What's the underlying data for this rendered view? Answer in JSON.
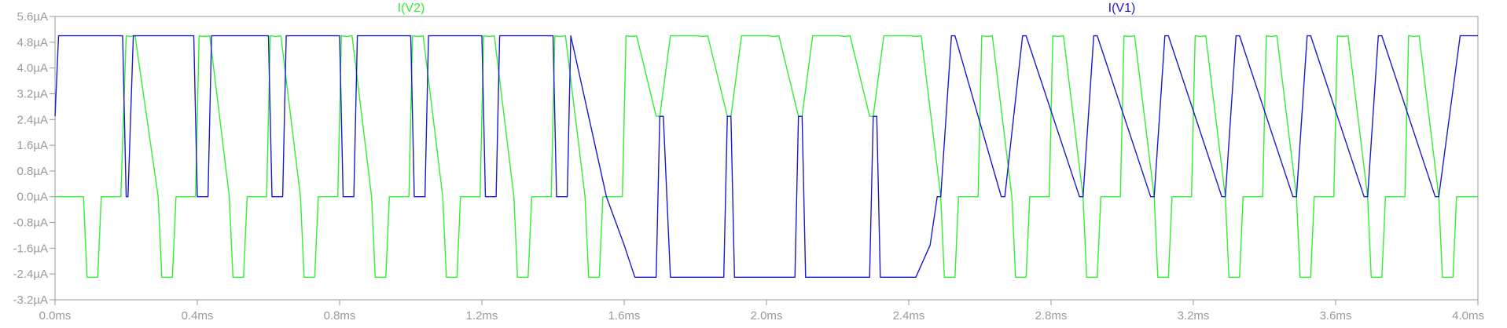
{
  "chart_data": {
    "type": "line",
    "x_unit": "ms",
    "y_unit": "µA",
    "xlim": [
      0.0,
      4.0
    ],
    "ylim": [
      -3.2,
      5.6
    ],
    "x_ticks": [
      "0.0ms",
      "0.4ms",
      "0.8ms",
      "1.2ms",
      "1.6ms",
      "2.0ms",
      "2.4ms",
      "2.8ms",
      "3.2ms",
      "3.6ms",
      "4.0ms"
    ],
    "y_ticks": [
      "5.6µA",
      "4.8µA",
      "4.0µA",
      "3.2µA",
      "2.4µA",
      "1.6µA",
      "0.8µA",
      "0.0µA",
      "-0.8µA",
      "-1.6µA",
      "-2.4µA",
      "-3.2µA"
    ],
    "grid": false,
    "legend_position": "top",
    "series": [
      {
        "name": "I(V2)",
        "color": "#33ee33",
        "x": [
          0.0,
          0.08,
          0.09,
          0.12,
          0.13,
          0.185,
          0.2,
          0.21,
          0.225,
          0.29,
          0.3,
          0.33,
          0.34,
          0.395,
          0.405,
          0.42,
          0.435,
          0.49,
          0.5,
          0.53,
          0.54,
          0.595,
          0.605,
          0.62,
          0.635,
          0.69,
          0.7,
          0.73,
          0.74,
          0.795,
          0.805,
          0.82,
          0.835,
          0.89,
          0.9,
          0.93,
          0.94,
          0.995,
          1.005,
          1.02,
          1.035,
          1.09,
          1.1,
          1.13,
          1.14,
          1.195,
          1.205,
          1.22,
          1.235,
          1.29,
          1.3,
          1.33,
          1.34,
          1.395,
          1.405,
          1.42,
          1.435,
          1.49,
          1.5,
          1.53,
          1.54,
          1.595,
          1.605,
          1.62,
          1.635,
          1.69,
          1.7,
          1.73,
          1.74,
          1.795,
          1.805,
          1.82,
          1.835,
          1.89,
          1.9,
          1.93,
          1.94,
          1.995,
          2.005,
          2.02,
          2.035,
          2.09,
          2.1,
          2.13,
          2.14,
          2.195,
          2.205,
          2.22,
          2.235,
          2.29,
          2.3,
          2.33,
          2.34,
          2.395,
          2.405,
          2.42,
          2.435,
          2.49,
          2.5,
          2.53,
          2.54,
          2.595,
          2.605,
          2.62,
          2.635,
          2.69,
          2.7,
          2.73,
          2.74,
          2.795,
          2.805,
          2.82,
          2.835,
          2.89,
          2.9,
          2.93,
          2.94,
          2.995,
          3.005,
          3.02,
          3.035,
          3.09,
          3.1,
          3.13,
          3.14,
          3.195,
          3.205,
          3.22,
          3.235,
          3.29,
          3.3,
          3.33,
          3.34,
          3.395,
          3.405,
          3.42,
          3.435,
          3.49,
          3.5,
          3.53,
          3.54,
          3.595,
          3.605,
          3.62,
          3.635,
          3.69,
          3.7,
          3.73,
          3.74,
          3.795,
          3.805,
          3.82,
          3.835,
          3.89,
          3.9,
          3.93,
          3.94,
          3.995,
          4.0
        ],
        "y": [
          0.0,
          0.0,
          -2.5,
          -2.5,
          0.0,
          0.0,
          5.0,
          4.98,
          5.0,
          0.0,
          -2.5,
          -2.5,
          0.0,
          0.0,
          5.0,
          4.98,
          5.0,
          0.0,
          -2.5,
          -2.5,
          0.0,
          0.0,
          5.0,
          4.98,
          5.0,
          0.0,
          -2.5,
          -2.5,
          0.0,
          0.0,
          5.0,
          4.98,
          5.0,
          0.0,
          -2.5,
          -2.5,
          0.0,
          0.0,
          5.0,
          4.98,
          5.0,
          0.0,
          -2.5,
          -2.5,
          0.0,
          0.0,
          5.0,
          4.98,
          5.0,
          0.0,
          -2.5,
          -2.5,
          0.0,
          0.0,
          5.0,
          4.98,
          5.0,
          0.0,
          -2.5,
          -2.5,
          0.0,
          0.0,
          5.0,
          4.98,
          5.0,
          2.5,
          2.5,
          5.0,
          5.0,
          5.0,
          5.0,
          4.98,
          5.0,
          2.5,
          2.5,
          5.0,
          5.0,
          5.0,
          5.0,
          4.98,
          5.0,
          2.5,
          2.5,
          5.0,
          5.0,
          5.0,
          5.0,
          4.98,
          5.0,
          2.5,
          2.5,
          5.0,
          5.0,
          5.0,
          5.0,
          4.98,
          5.0,
          0.0,
          -2.5,
          -2.5,
          0.0,
          0.0,
          5.0,
          4.98,
          5.0,
          0.0,
          -2.5,
          -2.5,
          0.0,
          0.0,
          5.0,
          4.98,
          5.0,
          0.0,
          -2.5,
          -2.5,
          0.0,
          0.0,
          5.0,
          4.98,
          5.0,
          0.0,
          -2.5,
          -2.5,
          0.0,
          0.0,
          5.0,
          4.98,
          5.0,
          0.0,
          -2.5,
          -2.5,
          0.0,
          0.0,
          5.0,
          4.98,
          5.0,
          0.0,
          -2.5,
          -2.5,
          0.0,
          0.0,
          5.0,
          4.98,
          5.0,
          0.0,
          -2.5,
          -2.5,
          0.0,
          0.0,
          5.0,
          4.98,
          5.0,
          0.0,
          -2.5,
          -2.5,
          0.0,
          0.0,
          0.0
        ]
      },
      {
        "name": "I(V1)",
        "color": "#1a1acc",
        "x": [
          0.0,
          0.01,
          0.19,
          0.2,
          0.205,
          0.22,
          0.23,
          0.39,
          0.4,
          0.43,
          0.44,
          0.6,
          0.61,
          0.64,
          0.65,
          0.8,
          0.81,
          0.84,
          0.85,
          1.0,
          1.01,
          1.04,
          1.05,
          1.2,
          1.21,
          1.24,
          1.25,
          1.4,
          1.41,
          1.44,
          1.45,
          1.55,
          1.6,
          1.63,
          1.65,
          1.69,
          1.7,
          1.71,
          1.73,
          1.88,
          1.89,
          1.9,
          1.91,
          2.08,
          2.09,
          2.1,
          2.11,
          2.29,
          2.3,
          2.31,
          2.32,
          2.42,
          2.46,
          2.48,
          2.49,
          2.52,
          2.53,
          2.66,
          2.67,
          2.72,
          2.73,
          2.88,
          2.89,
          2.92,
          2.93,
          3.08,
          3.09,
          3.12,
          3.13,
          3.28,
          3.29,
          3.32,
          3.33,
          3.48,
          3.49,
          3.52,
          3.53,
          3.68,
          3.69,
          3.72,
          3.73,
          3.88,
          3.89,
          3.95,
          4.0
        ],
        "y": [
          2.5,
          5.0,
          5.0,
          0.0,
          0.0,
          5.0,
          5.0,
          5.0,
          0.0,
          0.0,
          5.0,
          5.0,
          0.0,
          0.0,
          5.0,
          5.0,
          0.0,
          0.0,
          5.0,
          5.0,
          0.0,
          0.0,
          5.0,
          5.0,
          0.0,
          0.0,
          5.0,
          5.0,
          0.0,
          0.0,
          5.0,
          0.0,
          -1.5,
          -2.5,
          -2.5,
          -2.5,
          2.5,
          2.5,
          -2.5,
          -2.5,
          2.5,
          2.5,
          -2.5,
          -2.5,
          2.5,
          2.5,
          -2.5,
          -2.5,
          2.5,
          2.5,
          -2.5,
          -2.5,
          -1.5,
          0.0,
          0.0,
          5.0,
          5.0,
          0.0,
          0.0,
          5.0,
          5.0,
          0.0,
          0.0,
          5.0,
          5.0,
          0.0,
          0.0,
          5.0,
          5.0,
          0.0,
          0.0,
          5.0,
          5.0,
          0.0,
          0.0,
          5.0,
          5.0,
          0.0,
          0.0,
          5.0,
          5.0,
          0.0,
          0.0,
          5.0,
          5.0
        ]
      }
    ]
  }
}
